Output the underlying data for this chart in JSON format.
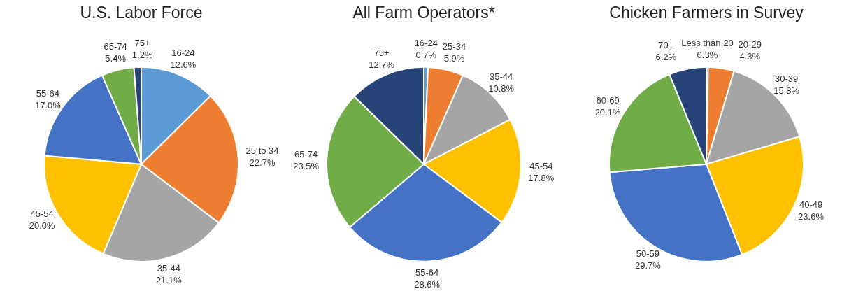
{
  "chart_data": [
    {
      "type": "pie",
      "title": "U.S. Labor Force",
      "categories": [
        "16-24",
        "25 to 34",
        "35-44",
        "45-54",
        "55-64",
        "65-74",
        "75+"
      ],
      "values": [
        12.6,
        22.7,
        21.1,
        20.0,
        17.0,
        5.4,
        1.2
      ],
      "value_labels": [
        "12.6%",
        "22.7%",
        "21.1%",
        "20.0%",
        "17.0%",
        "5.4%",
        "1.2%"
      ],
      "colors": [
        "#5b9bd5",
        "#ed7d31",
        "#a5a5a5",
        "#ffc000",
        "#4472c4",
        "#70ad47",
        "#264478"
      ]
    },
    {
      "type": "pie",
      "title": "All Farm Operators*",
      "categories": [
        "16-24",
        "25-34",
        "35-44",
        "45-54",
        "55-64",
        "65-74",
        "75+"
      ],
      "values": [
        0.7,
        5.9,
        10.8,
        17.8,
        28.6,
        23.5,
        12.7
      ],
      "value_labels": [
        "0.7%",
        "5.9%",
        "10.8%",
        "17.8%",
        "28.6%",
        "23.5%",
        "12.7%"
      ],
      "colors": [
        "#5b9bd5",
        "#ed7d31",
        "#a5a5a5",
        "#ffc000",
        "#4472c4",
        "#70ad47",
        "#264478"
      ]
    },
    {
      "type": "pie",
      "title": "Chicken Farmers in Survey",
      "categories": [
        "Less than 20",
        "20-29",
        "30-39",
        "40-49",
        "50-59",
        "60-69",
        "70+"
      ],
      "values": [
        0.3,
        4.3,
        15.8,
        23.6,
        29.7,
        20.1,
        6.2
      ],
      "value_labels": [
        "0.3%",
        "4.3%",
        "15.8%",
        "23.6%",
        "29.7%",
        "20.1%",
        "6.2%"
      ],
      "colors": [
        "#5b9bd5",
        "#ed7d31",
        "#a5a5a5",
        "#ffc000",
        "#4472c4",
        "#70ad47",
        "#264478"
      ]
    }
  ]
}
